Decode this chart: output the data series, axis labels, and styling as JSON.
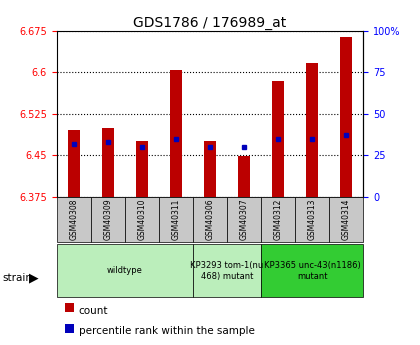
{
  "title": "GDS1786 / 176989_at",
  "samples": [
    "GSM40308",
    "GSM40309",
    "GSM40310",
    "GSM40311",
    "GSM40306",
    "GSM40307",
    "GSM40312",
    "GSM40313",
    "GSM40314"
  ],
  "count_values": [
    6.495,
    6.5,
    6.475,
    6.604,
    6.475,
    6.448,
    6.585,
    6.618,
    6.665
  ],
  "percentile_values": [
    32,
    33,
    30,
    35,
    30,
    30,
    35,
    35,
    37
  ],
  "ylim_left": [
    6.375,
    6.675
  ],
  "ylim_right": [
    0,
    100
  ],
  "yticks_left": [
    6.375,
    6.45,
    6.525,
    6.6,
    6.675
  ],
  "yticks_right": [
    0,
    25,
    50,
    75,
    100
  ],
  "ytick_labels_right": [
    "0",
    "25",
    "50",
    "75",
    "100%"
  ],
  "bar_color": "#bb0000",
  "dot_color": "#0000bb",
  "bar_bottom": 6.375,
  "group_defs": [
    {
      "label": "wildtype",
      "start": 0,
      "end": 4,
      "color": "#bbeebb"
    },
    {
      "label": "KP3293 tom-1(nu\n468) mutant",
      "start": 4,
      "end": 6,
      "color": "#bbeebb"
    },
    {
      "label": "KP3365 unc-43(n1186)\nmutant",
      "start": 6,
      "end": 9,
      "color": "#33bb33"
    }
  ],
  "legend_count_label": "count",
  "legend_pct_label": "percentile rank within the sample",
  "bar_width": 0.35
}
